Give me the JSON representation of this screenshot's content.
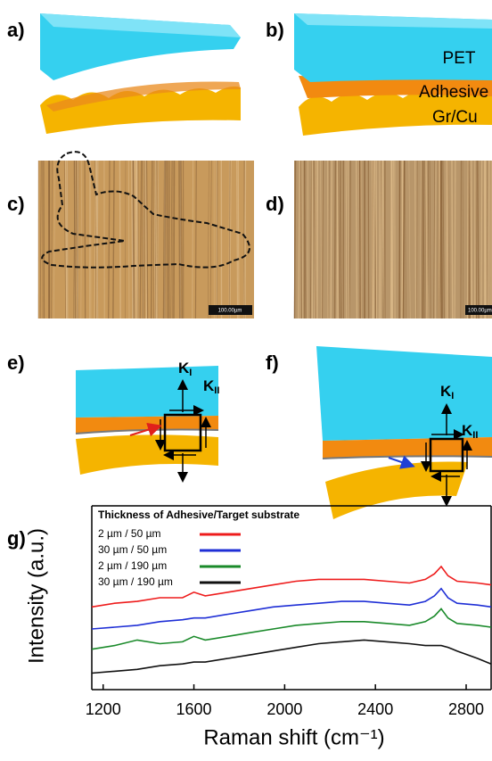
{
  "panel_labels": [
    "a)",
    "b)",
    "c)",
    "d)",
    "e)",
    "f)",
    "g)"
  ],
  "layer_labels": [
    "PET",
    "Adhesive",
    "Gr/Cu"
  ],
  "scale_bars": [
    "100.00µm",
    "100.00µm"
  ],
  "force_labels": {
    "e": {
      "mode_1": {
        "symbol": "K",
        "subscript": "I"
      },
      "mode_2": {
        "symbol": "K",
        "subscript": "II"
      }
    },
    "f": {
      "mode_1": {
        "symbol": "K",
        "subscript": "I"
      },
      "mode_2": {
        "symbol": "K",
        "subscript": "II"
      }
    }
  },
  "chart_data": {
    "type": "line",
    "x_label": "Raman shift (cm⁻¹)",
    "y_label": "Intensity (a.u.)",
    "legend_title": "Thickness of Adhesive/Target substrate",
    "legend": "upper left",
    "xlim": [
      1150,
      2910
    ],
    "ylim": [
      0,
      100
    ],
    "xticks": [
      1200,
      1600,
      2000,
      2400,
      2800
    ],
    "x": [
      1150,
      1250,
      1350,
      1450,
      1550,
      1600,
      1650,
      1750,
      1850,
      1950,
      2050,
      2150,
      2250,
      2350,
      2450,
      2550,
      2620,
      2660,
      2690,
      2720,
      2760,
      2850,
      2910
    ],
    "series": [
      {
        "name": "2 µm / 50 µm",
        "color": "#ee1c1c",
        "values": [
          45,
          47,
          48,
          50,
          50,
          53,
          51,
          53,
          55,
          57,
          59,
          60,
          60,
          60,
          59,
          58,
          60,
          63,
          67,
          62,
          59,
          58,
          57
        ]
      },
      {
        "name": "30 µm / 50 µm",
        "color": "#1f2fd6",
        "values": [
          33,
          34,
          35,
          37,
          38,
          39,
          39,
          41,
          43,
          45,
          46,
          47,
          48,
          48,
          47,
          46,
          48,
          51,
          55,
          50,
          47,
          46,
          45
        ]
      },
      {
        "name": "2 µm / 190 µm",
        "color": "#1a8a2a",
        "values": [
          22,
          24,
          27,
          25,
          26,
          29,
          27,
          29,
          31,
          33,
          35,
          36,
          37,
          37,
          36,
          35,
          37,
          40,
          44,
          39,
          36,
          35,
          34
        ]
      },
      {
        "name": "30 µm / 190 µm",
        "color": "#111111",
        "values": [
          9,
          10,
          11,
          13,
          14,
          15,
          15,
          17,
          19,
          21,
          23,
          25,
          26,
          27,
          26,
          25,
          24,
          24,
          24,
          23,
          21,
          17,
          14
        ]
      }
    ]
  }
}
